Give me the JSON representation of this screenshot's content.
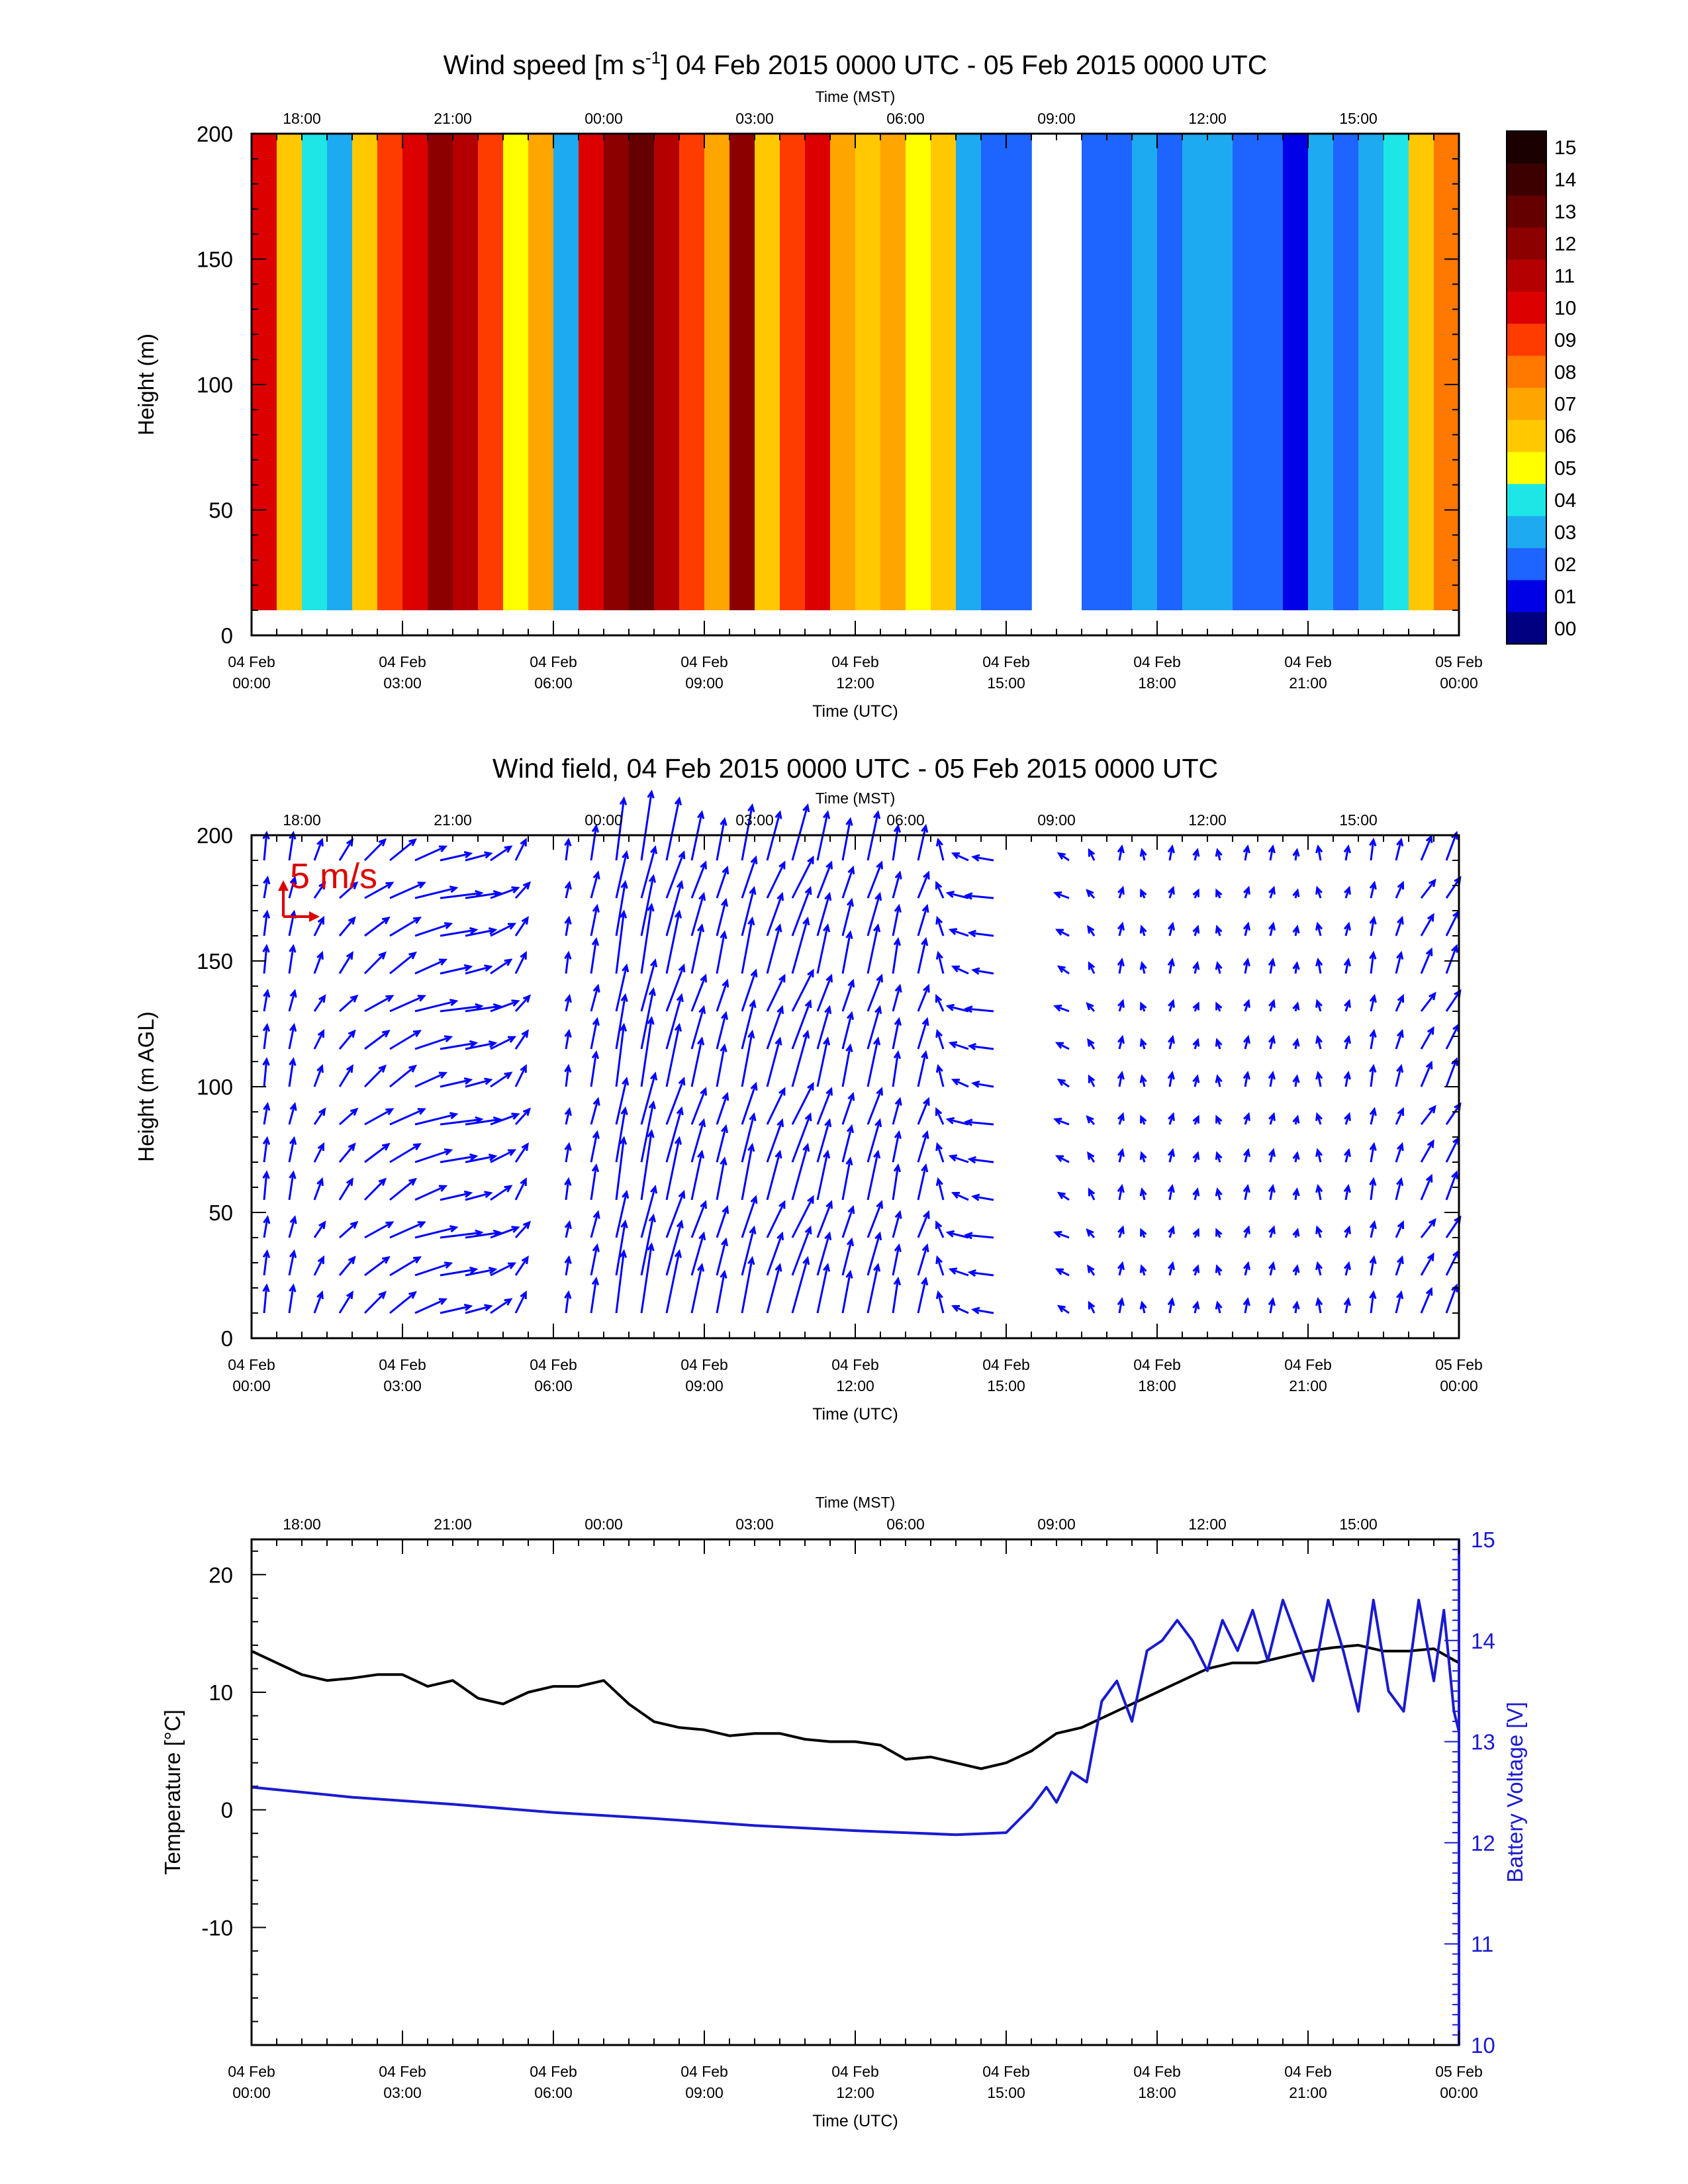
{
  "chart_data": [
    {
      "type": "heatmap",
      "title": "Wind speed [m s-1] 04 Feb 2015 0000 UTC - 05 Feb 2015 0000 UTC",
      "title_parts": {
        "before": "Wind speed [m s",
        "superscript": "-1",
        "after": "] 04 Feb 2015 0000 UTC - 05 Feb 2015 0000 UTC"
      },
      "xlabel": "Time (UTC)",
      "x2label": "Time (MST)",
      "ylabel": "Height (m)",
      "xlim": [
        0,
        24
      ],
      "ylim": [
        0,
        200
      ],
      "yticks": [
        "0",
        "50",
        "100",
        "150",
        "200"
      ],
      "colorbar": {
        "labels": [
          "00",
          "01",
          "02",
          "03",
          "04",
          "05",
          "06",
          "07",
          "08",
          "09",
          "10",
          "11",
          "12",
          "13",
          "14",
          "15"
        ],
        "colors": [
          "#000080",
          "#0000e6",
          "#1e64ff",
          "#1eaaf0",
          "#1ee6e6",
          "#ffff00",
          "#ffc800",
          "#ffa500",
          "#ff7800",
          "#ff3c00",
          "#dc0000",
          "#b40000",
          "#8c0000",
          "#640000",
          "#3c0000",
          "#1a0000"
        ]
      },
      "data_heights_m": [
        10,
        200
      ],
      "speed_by_hour": [
        {
          "utc_hour": 0.0,
          "speed_ms": 10
        },
        {
          "utc_hour": 0.5,
          "speed_ms": 6
        },
        {
          "utc_hour": 1.0,
          "speed_ms": 4
        },
        {
          "utc_hour": 1.5,
          "speed_ms": 3
        },
        {
          "utc_hour": 2.0,
          "speed_ms": 6
        },
        {
          "utc_hour": 2.5,
          "speed_ms": 9
        },
        {
          "utc_hour": 3.0,
          "speed_ms": 10
        },
        {
          "utc_hour": 3.5,
          "speed_ms": 12
        },
        {
          "utc_hour": 4.0,
          "speed_ms": 11
        },
        {
          "utc_hour": 4.5,
          "speed_ms": 9
        },
        {
          "utc_hour": 5.0,
          "speed_ms": 5
        },
        {
          "utc_hour": 5.5,
          "speed_ms": 7
        },
        {
          "utc_hour": 6.0,
          "speed_ms": 3
        },
        {
          "utc_hour": 6.5,
          "speed_ms": 10
        },
        {
          "utc_hour": 7.0,
          "speed_ms": 12
        },
        {
          "utc_hour": 7.5,
          "speed_ms": 13
        },
        {
          "utc_hour": 8.0,
          "speed_ms": 11
        },
        {
          "utc_hour": 8.5,
          "speed_ms": 9
        },
        {
          "utc_hour": 9.0,
          "speed_ms": 7
        },
        {
          "utc_hour": 9.5,
          "speed_ms": 12
        },
        {
          "utc_hour": 10.0,
          "speed_ms": 6
        },
        {
          "utc_hour": 10.5,
          "speed_ms": 9
        },
        {
          "utc_hour": 11.0,
          "speed_ms": 10
        },
        {
          "utc_hour": 11.5,
          "speed_ms": 7
        },
        {
          "utc_hour": 12.0,
          "speed_ms": 6
        },
        {
          "utc_hour": 12.5,
          "speed_ms": 7
        },
        {
          "utc_hour": 13.0,
          "speed_ms": 5
        },
        {
          "utc_hour": 13.5,
          "speed_ms": 6
        },
        {
          "utc_hour": 14.0,
          "speed_ms": 3
        },
        {
          "utc_hour": 14.5,
          "speed_ms": 2
        },
        {
          "utc_hour": 15.0,
          "speed_ms": 2
        },
        {
          "utc_hour": 16.5,
          "speed_ms": 2
        },
        {
          "utc_hour": 17.0,
          "speed_ms": 2
        },
        {
          "utc_hour": 17.5,
          "speed_ms": 3
        },
        {
          "utc_hour": 18.0,
          "speed_ms": 2
        },
        {
          "utc_hour": 18.5,
          "speed_ms": 3
        },
        {
          "utc_hour": 19.0,
          "speed_ms": 3
        },
        {
          "utc_hour": 19.5,
          "speed_ms": 2
        },
        {
          "utc_hour": 20.0,
          "speed_ms": 2
        },
        {
          "utc_hour": 20.5,
          "speed_ms": 1
        },
        {
          "utc_hour": 21.0,
          "speed_ms": 3
        },
        {
          "utc_hour": 21.5,
          "speed_ms": 2
        },
        {
          "utc_hour": 22.0,
          "speed_ms": 3
        },
        {
          "utc_hour": 22.5,
          "speed_ms": 4
        },
        {
          "utc_hour": 23.0,
          "speed_ms": 6
        },
        {
          "utc_hour": 23.5,
          "speed_ms": 8
        }
      ]
    },
    {
      "type": "scatter",
      "subtype": "vector-field",
      "title": "Wind field, 04 Feb 2015 0000 UTC - 05 Feb 2015 0000 UTC",
      "xlabel": "Time (UTC)",
      "x2label": "Time (MST)",
      "ylabel": "Height (m AGL)",
      "xlim": [
        0,
        24
      ],
      "ylim": [
        0,
        200
      ],
      "yticks": [
        "0",
        "50",
        "100",
        "150",
        "200"
      ],
      "reference_vector": {
        "label": "5 m/s",
        "speed_ms": 5,
        "color": "#dd0000"
      },
      "arrow_color": "#0000ff",
      "heights_m": [
        10,
        25,
        40,
        55,
        70,
        85,
        100,
        115,
        130,
        145,
        160,
        175,
        190
      ],
      "vectors_by_hour": [
        {
          "utc_hour": 0.25,
          "u_ms": 0.5,
          "v_ms": 4
        },
        {
          "utc_hour": 0.75,
          "u_ms": 0.8,
          "v_ms": 4
        },
        {
          "utc_hour": 1.25,
          "u_ms": 1.5,
          "v_ms": 3
        },
        {
          "utc_hour": 1.75,
          "u_ms": 2.5,
          "v_ms": 3
        },
        {
          "utc_hour": 2.25,
          "u_ms": 4,
          "v_ms": 3
        },
        {
          "utc_hour": 2.75,
          "u_ms": 5,
          "v_ms": 3
        },
        {
          "utc_hour": 3.25,
          "u_ms": 6,
          "v_ms": 2
        },
        {
          "utc_hour": 3.75,
          "u_ms": 6,
          "v_ms": 1
        },
        {
          "utc_hour": 4.25,
          "u_ms": 5,
          "v_ms": 1
        },
        {
          "utc_hour": 4.75,
          "u_ms": 4,
          "v_ms": 2
        },
        {
          "utc_hour": 5.25,
          "u_ms": 2,
          "v_ms": 3
        },
        {
          "utc_hour": 6.25,
          "u_ms": 0.5,
          "v_ms": 3
        },
        {
          "utc_hour": 6.75,
          "u_ms": 1,
          "v_ms": 5
        },
        {
          "utc_hour": 7.25,
          "u_ms": 1.5,
          "v_ms": 9
        },
        {
          "utc_hour": 7.75,
          "u_ms": 2,
          "v_ms": 10
        },
        {
          "utc_hour": 8.25,
          "u_ms": 2.5,
          "v_ms": 9
        },
        {
          "utc_hour": 8.75,
          "u_ms": 2,
          "v_ms": 7
        },
        {
          "utc_hour": 9.25,
          "u_ms": 1.5,
          "v_ms": 6
        },
        {
          "utc_hour": 9.75,
          "u_ms": 2,
          "v_ms": 8
        },
        {
          "utc_hour": 10.25,
          "u_ms": 2.5,
          "v_ms": 7
        },
        {
          "utc_hour": 10.75,
          "u_ms": 3,
          "v_ms": 8
        },
        {
          "utc_hour": 11.25,
          "u_ms": 2,
          "v_ms": 7
        },
        {
          "utc_hour": 11.75,
          "u_ms": 1.5,
          "v_ms": 6
        },
        {
          "utc_hour": 12.25,
          "u_ms": 2,
          "v_ms": 7
        },
        {
          "utc_hour": 12.75,
          "u_ms": 1,
          "v_ms": 5
        },
        {
          "utc_hour": 13.25,
          "u_ms": 1.5,
          "v_ms": 5
        },
        {
          "utc_hour": 13.75,
          "u_ms": -1,
          "v_ms": 3
        },
        {
          "utc_hour": 14.25,
          "u_ms": -3,
          "v_ms": 1
        },
        {
          "utc_hour": 14.75,
          "u_ms": -4,
          "v_ms": 0.5
        },
        {
          "utc_hour": 16.25,
          "u_ms": -2,
          "v_ms": 1
        },
        {
          "utc_hour": 16.75,
          "u_ms": -1,
          "v_ms": 1.5
        },
        {
          "utc_hour": 17.25,
          "u_ms": 0.5,
          "v_ms": 2
        },
        {
          "utc_hour": 17.75,
          "u_ms": -0.5,
          "v_ms": 1.5
        },
        {
          "utc_hour": 18.25,
          "u_ms": 0.5,
          "v_ms": 2
        },
        {
          "utc_hour": 18.75,
          "u_ms": 0.5,
          "v_ms": 1.5
        },
        {
          "utc_hour": 19.25,
          "u_ms": -0.5,
          "v_ms": 1.5
        },
        {
          "utc_hour": 19.75,
          "u_ms": 0.5,
          "v_ms": 2
        },
        {
          "utc_hour": 20.25,
          "u_ms": 0.5,
          "v_ms": 2
        },
        {
          "utc_hour": 20.75,
          "u_ms": 0.3,
          "v_ms": 1.5
        },
        {
          "utc_hour": 21.25,
          "u_ms": -0.5,
          "v_ms": 2
        },
        {
          "utc_hour": 21.75,
          "u_ms": 0.5,
          "v_ms": 2
        },
        {
          "utc_hour": 22.25,
          "u_ms": 0.5,
          "v_ms": 3
        },
        {
          "utc_hour": 22.75,
          "u_ms": 1,
          "v_ms": 3
        },
        {
          "utc_hour": 23.25,
          "u_ms": 2,
          "v_ms": 3.5
        },
        {
          "utc_hour": 23.75,
          "u_ms": 2,
          "v_ms": 4
        }
      ]
    },
    {
      "type": "line",
      "title": "",
      "xlabel": "Time (UTC)",
      "x2label": "Time (MST)",
      "ylabel": "Temperature [°C]",
      "y2label": "Battery Voltage [V]",
      "xlim": [
        0,
        24
      ],
      "ylim": [
        -20,
        23
      ],
      "y2lim": [
        10,
        15
      ],
      "yticks": [
        "-10",
        "0",
        "10",
        "20"
      ],
      "y2ticks": [
        "10",
        "11",
        "12",
        "13",
        "14",
        "15"
      ],
      "series": [
        {
          "color": "#000000",
          "axis": "left",
          "points": [
            {
              "utc_hour": 0.0,
              "value": 13.5
            },
            {
              "utc_hour": 0.5,
              "value": 12.5
            },
            {
              "utc_hour": 1.0,
              "value": 11.5
            },
            {
              "utc_hour": 1.5,
              "value": 11.0
            },
            {
              "utc_hour": 2.0,
              "value": 11.2
            },
            {
              "utc_hour": 2.5,
              "value": 11.5
            },
            {
              "utc_hour": 3.0,
              "value": 11.5
            },
            {
              "utc_hour": 3.5,
              "value": 10.5
            },
            {
              "utc_hour": 4.0,
              "value": 11.0
            },
            {
              "utc_hour": 4.5,
              "value": 9.5
            },
            {
              "utc_hour": 5.0,
              "value": 9.0
            },
            {
              "utc_hour": 5.5,
              "value": 10.0
            },
            {
              "utc_hour": 6.0,
              "value": 10.5
            },
            {
              "utc_hour": 6.5,
              "value": 10.5
            },
            {
              "utc_hour": 7.0,
              "value": 11.0
            },
            {
              "utc_hour": 7.5,
              "value": 9.0
            },
            {
              "utc_hour": 8.0,
              "value": 7.5
            },
            {
              "utc_hour": 8.5,
              "value": 7.0
            },
            {
              "utc_hour": 9.0,
              "value": 6.8
            },
            {
              "utc_hour": 9.5,
              "value": 6.3
            },
            {
              "utc_hour": 10.0,
              "value": 6.5
            },
            {
              "utc_hour": 10.5,
              "value": 6.5
            },
            {
              "utc_hour": 11.0,
              "value": 6.0
            },
            {
              "utc_hour": 11.5,
              "value": 5.8
            },
            {
              "utc_hour": 12.0,
              "value": 5.8
            },
            {
              "utc_hour": 12.5,
              "value": 5.5
            },
            {
              "utc_hour": 13.0,
              "value": 4.3
            },
            {
              "utc_hour": 13.5,
              "value": 4.5
            },
            {
              "utc_hour": 14.0,
              "value": 4.0
            },
            {
              "utc_hour": 14.5,
              "value": 3.5
            },
            {
              "utc_hour": 15.0,
              "value": 4.0
            },
            {
              "utc_hour": 15.5,
              "value": 5.0
            },
            {
              "utc_hour": 16.0,
              "value": 6.5
            },
            {
              "utc_hour": 16.5,
              "value": 7.0
            },
            {
              "utc_hour": 17.0,
              "value": 8.0
            },
            {
              "utc_hour": 17.5,
              "value": 9.0
            },
            {
              "utc_hour": 18.0,
              "value": 10.0
            },
            {
              "utc_hour": 18.5,
              "value": 11.0
            },
            {
              "utc_hour": 19.0,
              "value": 12.0
            },
            {
              "utc_hour": 19.5,
              "value": 12.5
            },
            {
              "utc_hour": 20.0,
              "value": 12.5
            },
            {
              "utc_hour": 20.5,
              "value": 13.0
            },
            {
              "utc_hour": 21.0,
              "value": 13.5
            },
            {
              "utc_hour": 21.5,
              "value": 13.8
            },
            {
              "utc_hour": 22.0,
              "value": 14.0
            },
            {
              "utc_hour": 22.5,
              "value": 13.5
            },
            {
              "utc_hour": 23.0,
              "value": 13.5
            },
            {
              "utc_hour": 23.5,
              "value": 13.7
            },
            {
              "utc_hour": 24.0,
              "value": 12.5
            }
          ]
        },
        {
          "color": "#1a1ad0",
          "axis": "right",
          "points": [
            {
              "utc_hour": 0.0,
              "value": 12.55
            },
            {
              "utc_hour": 2.0,
              "value": 12.45
            },
            {
              "utc_hour": 4.0,
              "value": 12.38
            },
            {
              "utc_hour": 6.0,
              "value": 12.3
            },
            {
              "utc_hour": 8.0,
              "value": 12.24
            },
            {
              "utc_hour": 10.0,
              "value": 12.17
            },
            {
              "utc_hour": 12.0,
              "value": 12.12
            },
            {
              "utc_hour": 14.0,
              "value": 12.08
            },
            {
              "utc_hour": 15.0,
              "value": 12.1
            },
            {
              "utc_hour": 15.5,
              "value": 12.35
            },
            {
              "utc_hour": 15.8,
              "value": 12.55
            },
            {
              "utc_hour": 16.0,
              "value": 12.4
            },
            {
              "utc_hour": 16.3,
              "value": 12.7
            },
            {
              "utc_hour": 16.6,
              "value": 12.6
            },
            {
              "utc_hour": 16.9,
              "value": 13.4
            },
            {
              "utc_hour": 17.2,
              "value": 13.6
            },
            {
              "utc_hour": 17.5,
              "value": 13.2
            },
            {
              "utc_hour": 17.8,
              "value": 13.9
            },
            {
              "utc_hour": 18.1,
              "value": 14.0
            },
            {
              "utc_hour": 18.4,
              "value": 14.2
            },
            {
              "utc_hour": 18.7,
              "value": 14.0
            },
            {
              "utc_hour": 19.0,
              "value": 13.7
            },
            {
              "utc_hour": 19.3,
              "value": 14.2
            },
            {
              "utc_hour": 19.6,
              "value": 13.9
            },
            {
              "utc_hour": 19.9,
              "value": 14.3
            },
            {
              "utc_hour": 20.2,
              "value": 13.8
            },
            {
              "utc_hour": 20.5,
              "value": 14.4
            },
            {
              "utc_hour": 20.8,
              "value": 14.0
            },
            {
              "utc_hour": 21.1,
              "value": 13.6
            },
            {
              "utc_hour": 21.4,
              "value": 14.4
            },
            {
              "utc_hour": 21.7,
              "value": 13.9
            },
            {
              "utc_hour": 22.0,
              "value": 13.3
            },
            {
              "utc_hour": 22.3,
              "value": 14.4
            },
            {
              "utc_hour": 22.6,
              "value": 13.5
            },
            {
              "utc_hour": 22.9,
              "value": 13.3
            },
            {
              "utc_hour": 23.2,
              "value": 14.4
            },
            {
              "utc_hour": 23.5,
              "value": 13.6
            },
            {
              "utc_hour": 23.7,
              "value": 14.3
            },
            {
              "utc_hour": 23.9,
              "value": 13.3
            },
            {
              "utc_hour": 24.0,
              "value": 13.1
            }
          ]
        }
      ]
    }
  ],
  "axes": {
    "utc_ticks": [
      {
        "line1": "04 Feb",
        "line2": "00:00"
      },
      {
        "line1": "04 Feb",
        "line2": "03:00"
      },
      {
        "line1": "04 Feb",
        "line2": "06:00"
      },
      {
        "line1": "04 Feb",
        "line2": "09:00"
      },
      {
        "line1": "04 Feb",
        "line2": "12:00"
      },
      {
        "line1": "04 Feb",
        "line2": "15:00"
      },
      {
        "line1": "04 Feb",
        "line2": "18:00"
      },
      {
        "line1": "04 Feb",
        "line2": "21:00"
      },
      {
        "line1": "05 Feb",
        "line2": "00:00"
      }
    ],
    "mst_ticks": [
      {
        "utc_hour": 1,
        "label": "18:00"
      },
      {
        "utc_hour": 4,
        "label": "21:00"
      },
      {
        "utc_hour": 7,
        "label": "00:00"
      },
      {
        "utc_hour": 10,
        "label": "03:00"
      },
      {
        "utc_hour": 13,
        "label": "06:00"
      },
      {
        "utc_hour": 16,
        "label": "09:00"
      },
      {
        "utc_hour": 19,
        "label": "12:00"
      },
      {
        "utc_hour": 22,
        "label": "15:00"
      }
    ]
  }
}
